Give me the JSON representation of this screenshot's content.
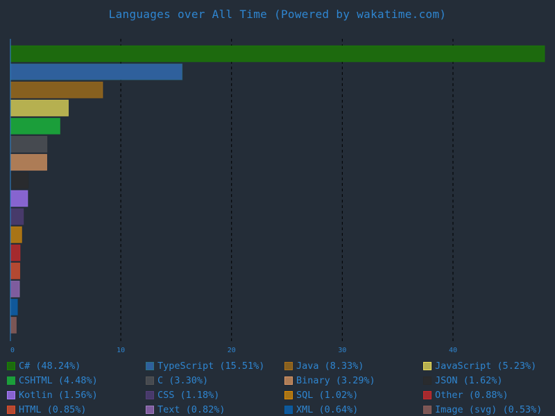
{
  "chart_data": {
    "type": "bar",
    "orientation": "horizontal",
    "title": "Languages over All Time (Powered by wakatime.com)",
    "xlim": [
      0,
      48.24
    ],
    "x_ticks": [
      "0",
      "10",
      "20",
      "30",
      "40"
    ],
    "grid": "vertical dashed",
    "legend_position": "bottom",
    "categories": [
      "C#",
      "TypeScript",
      "Java",
      "JavaScript",
      "CSHTML",
      "C",
      "Binary",
      "JSON",
      "Kotlin",
      "CSS",
      "SQL",
      "Other",
      "HTML",
      "Text",
      "XML",
      "Image (svg)"
    ],
    "values": [
      48.24,
      15.51,
      8.33,
      5.23,
      4.48,
      3.3,
      3.29,
      1.62,
      1.56,
      1.18,
      1.02,
      0.88,
      0.85,
      0.82,
      0.64,
      0.53
    ],
    "legend_labels": [
      "C# (48.24%)",
      "TypeScript (15.51%)",
      "Java (8.33%)",
      "JavaScript (5.23%)",
      "CSHTML (4.48%)",
      "C (3.30%)",
      "Binary (3.29%)",
      "JSON (1.62%)",
      "Kotlin (1.56%)",
      "CSS (1.18%)",
      "SQL (1.02%)",
      "Other (0.88%)",
      "HTML (0.85%)",
      "Text (0.82%)",
      "XML (0.64%)",
      "Image (svg) (0.53%)"
    ],
    "colors": [
      "#178600",
      "#2b7489",
      "#b07219",
      "#f1e05a",
      "#1ba13a",
      "#555555",
      "#dd9766",
      "#292929",
      "#a97bff",
      "#563d7c",
      "#e38c00",
      "#cc2a2a",
      "#e34c26",
      "#a07fc0",
      "#0060ac",
      "#8b5d57"
    ],
    "fill_colors": [
      "#1d6a0e",
      "#2f609c",
      "#87601f",
      "#b6b050",
      "#1b9e3a",
      "#464a50",
      "#ad7c56",
      "#292b2e",
      "#8764cf",
      "#473a6a",
      "#a87416",
      "#a52a2e",
      "#b44932",
      "#7e5c9e",
      "#10589a",
      "#7b5655"
    ]
  }
}
